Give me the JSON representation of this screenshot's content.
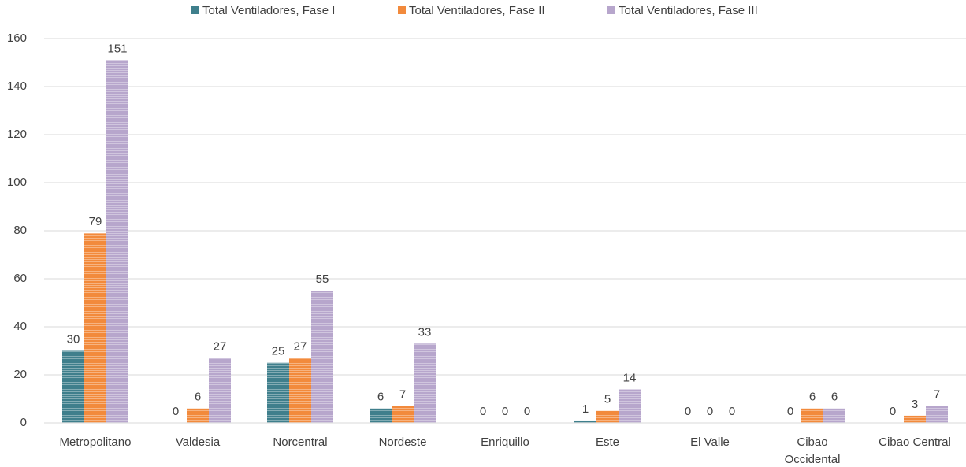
{
  "chart_data": {
    "type": "bar",
    "categories": [
      "Metropolitano",
      "Valdesia",
      "Norcentral",
      "Nordeste",
      "Enriquillo",
      "Este",
      "El Valle",
      "Cibao Occidental",
      "Cibao Central"
    ],
    "series": [
      {
        "name": "Total Ventiladores, Fase I",
        "color": "#3f7f8c",
        "values": [
          30,
          0,
          25,
          6,
          0,
          1,
          0,
          0,
          0
        ]
      },
      {
        "name": "Total Ventiladores, Fase II",
        "color": "#f28a3c",
        "values": [
          79,
          6,
          27,
          7,
          0,
          5,
          0,
          6,
          3
        ]
      },
      {
        "name": "Total Ventiladores, Fase III",
        "color": "#b7a6cc",
        "values": [
          151,
          27,
          55,
          33,
          0,
          14,
          0,
          6,
          7
        ]
      }
    ],
    "ylim": [
      0,
      160
    ],
    "yticks": [
      0,
      20,
      40,
      60,
      80,
      100,
      120,
      140,
      160
    ],
    "grid": true,
    "legend": "top"
  }
}
